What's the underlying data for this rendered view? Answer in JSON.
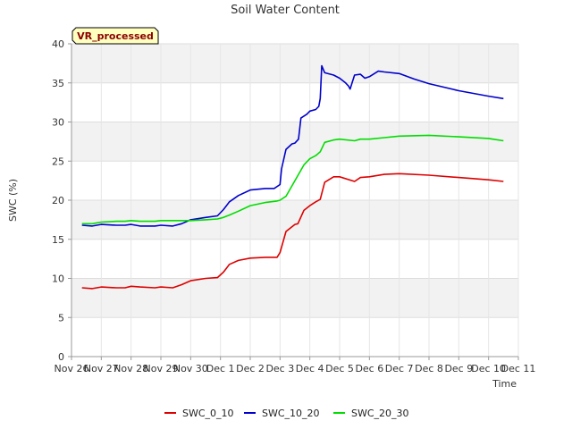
{
  "chart_data": {
    "type": "line",
    "title": "Soil Water Content",
    "xlabel": "Time",
    "ylabel": "SWC (%)",
    "badge": "VR_processed",
    "xlim": [
      0,
      15
    ],
    "ylim": [
      0,
      40
    ],
    "x_ticks": [
      {
        "value": 0,
        "label": "Nov 26"
      },
      {
        "value": 1,
        "label": "Nov 27"
      },
      {
        "value": 2,
        "label": "Nov 28"
      },
      {
        "value": 3,
        "label": "Nov 29"
      },
      {
        "value": 4,
        "label": "Nov 30"
      },
      {
        "value": 5,
        "label": "Dec 1"
      },
      {
        "value": 6,
        "label": "Dec 2"
      },
      {
        "value": 7,
        "label": "Dec 3"
      },
      {
        "value": 8,
        "label": "Dec 4"
      },
      {
        "value": 9,
        "label": "Dec 5"
      },
      {
        "value": 10,
        "label": "Dec 6"
      },
      {
        "value": 11,
        "label": "Dec 7"
      },
      {
        "value": 12,
        "label": "Dec 8"
      },
      {
        "value": 13,
        "label": "Dec 9"
      },
      {
        "value": 14,
        "label": "Dec 10"
      },
      {
        "value": 15,
        "label": "Dec 11"
      }
    ],
    "y_ticks": [
      0,
      5,
      10,
      15,
      20,
      25,
      30,
      35,
      40
    ],
    "legend_position": "bottom",
    "series": [
      {
        "name": "SWC_0_10",
        "color": "#dd0000",
        "x": [
          0.35,
          0.7,
          1.0,
          1.5,
          1.8,
          2.0,
          2.3,
          2.8,
          3.0,
          3.4,
          3.7,
          4.0,
          4.5,
          4.9,
          5.1,
          5.3,
          5.6,
          6.0,
          6.5,
          6.9,
          7.0,
          7.2,
          7.5,
          7.6,
          7.8,
          8.0,
          8.2,
          8.35,
          8.5,
          8.8,
          9.0,
          9.5,
          9.7,
          10.0,
          10.5,
          11.0,
          12.0,
          13.0,
          14.0,
          14.5
        ],
        "y": [
          8.8,
          8.7,
          8.9,
          8.8,
          8.8,
          9.0,
          8.9,
          8.8,
          8.9,
          8.8,
          9.2,
          9.7,
          10.0,
          10.1,
          10.8,
          11.8,
          12.3,
          12.6,
          12.7,
          12.7,
          13.3,
          16.0,
          16.9,
          17.0,
          18.7,
          19.3,
          19.8,
          20.1,
          22.3,
          23.0,
          23.0,
          22.4,
          22.9,
          23.0,
          23.3,
          23.4,
          23.2,
          22.9,
          22.6,
          22.4
        ]
      },
      {
        "name": "SWC_10_20",
        "color": "#0000cc",
        "x": [
          0.35,
          0.7,
          1.0,
          1.5,
          1.8,
          2.0,
          2.3,
          2.8,
          3.0,
          3.4,
          3.7,
          4.0,
          4.5,
          4.9,
          5.1,
          5.3,
          5.6,
          6.0,
          6.5,
          6.8,
          7.0,
          7.05,
          7.2,
          7.4,
          7.5,
          7.62,
          7.7,
          7.9,
          8.0,
          8.2,
          8.3,
          8.35,
          8.4,
          8.5,
          8.8,
          9.0,
          9.2,
          9.3,
          9.35,
          9.5,
          9.7,
          9.85,
          10.0,
          10.3,
          10.5,
          11.0,
          11.5,
          12.0,
          13.0,
          14.0,
          14.5
        ],
        "y": [
          16.8,
          16.7,
          16.9,
          16.8,
          16.8,
          16.9,
          16.7,
          16.7,
          16.8,
          16.7,
          17.0,
          17.5,
          17.8,
          18.0,
          18.8,
          19.8,
          20.6,
          21.3,
          21.5,
          21.5,
          22.0,
          24.0,
          26.5,
          27.2,
          27.3,
          27.8,
          30.5,
          31.0,
          31.4,
          31.6,
          32.0,
          33.0,
          37.2,
          36.3,
          36.0,
          35.6,
          35.0,
          34.6,
          34.2,
          36.0,
          36.1,
          35.6,
          35.8,
          36.5,
          36.4,
          36.2,
          35.5,
          34.9,
          34.0,
          33.3,
          33.0
        ]
      },
      {
        "name": "SWC_20_30",
        "color": "#00dd00",
        "x": [
          0.35,
          0.7,
          1.0,
          1.5,
          1.8,
          2.0,
          2.3,
          2.8,
          3.0,
          3.4,
          3.7,
          4.0,
          4.5,
          4.9,
          5.1,
          5.3,
          5.6,
          6.0,
          6.5,
          6.9,
          7.0,
          7.2,
          7.5,
          7.8,
          8.0,
          8.2,
          8.35,
          8.5,
          8.8,
          9.0,
          9.5,
          9.7,
          10.0,
          10.5,
          11.0,
          12.0,
          13.0,
          14.0,
          14.5
        ],
        "y": [
          17.0,
          17.0,
          17.2,
          17.3,
          17.3,
          17.4,
          17.3,
          17.3,
          17.4,
          17.4,
          17.4,
          17.4,
          17.5,
          17.6,
          17.8,
          18.1,
          18.6,
          19.3,
          19.7,
          19.9,
          20.0,
          20.5,
          22.5,
          24.5,
          25.3,
          25.7,
          26.2,
          27.4,
          27.7,
          27.8,
          27.6,
          27.8,
          27.8,
          28.0,
          28.2,
          28.3,
          28.1,
          27.9,
          27.6
        ]
      }
    ]
  }
}
